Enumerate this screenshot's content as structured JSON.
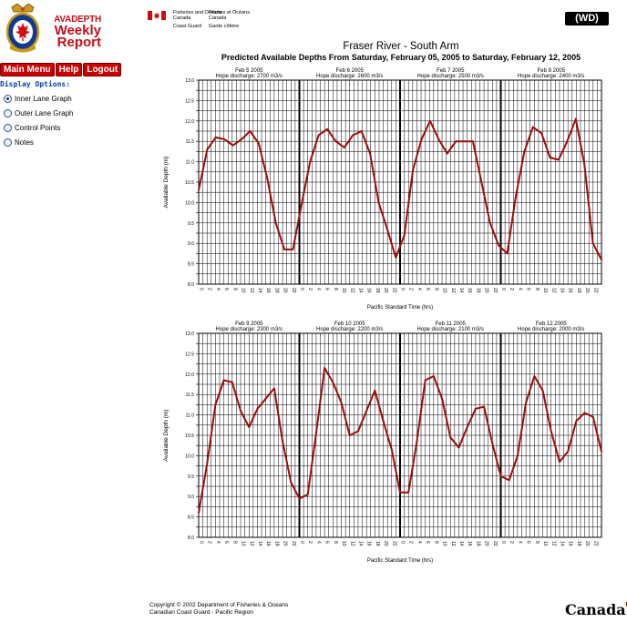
{
  "app": {
    "logo": {
      "line1": "AVADEPTH",
      "line2": "Weekly",
      "line3": "Report"
    },
    "nav": {
      "main_menu": "Main Menu",
      "help": "Help",
      "logout": "Logout"
    },
    "display_options": {
      "title": "Display Options:",
      "items": [
        {
          "label": "Inner Lane Graph",
          "selected": true
        },
        {
          "label": "Outer Lane Graph",
          "selected": false
        },
        {
          "label": "Control Points",
          "selected": false
        },
        {
          "label": "Notes",
          "selected": false
        }
      ]
    }
  },
  "header": {
    "gov_en": "Fisheries and Oceans",
    "gov_en2": "Canada",
    "gov_en3": "Coast Guard",
    "gov_fr": "Pêches et Océans",
    "gov_fr2": "Canada",
    "gov_fr3": "Garde côtière",
    "badge": "(WD)",
    "title": "Fraser River - South Arm",
    "subtitle": "Predicted Available Depths From Saturday, February 05, 2005 to Saturday, February 12, 2005"
  },
  "footer": {
    "copyright_line1": "Copyright © 2002 Department of Fisheries & Oceans",
    "copyright_line2": "Canadian Coast Guard - Pacific Region",
    "wordmark": "Canada"
  },
  "colors": {
    "accent": "#cc0000",
    "line": "#9b0d0d",
    "brand_red": "#c0101a"
  },
  "chart_data": [
    {
      "type": "line",
      "xlabel": "Pacific Standard Time (hrs)",
      "ylabel": "Available Depth (m)",
      "ylim": [
        8.0,
        13.0
      ],
      "y_ticks": [
        "8.0",
        "8.5",
        "9.0",
        "9.5",
        "10.0",
        "10.5",
        "11.0",
        "11.5",
        "12.0",
        "12.5",
        "13.0"
      ],
      "x_tick_labels": [
        "0",
        "2",
        "4",
        "6",
        "8",
        "10",
        "12",
        "14",
        "16",
        "18",
        "20",
        "22"
      ],
      "grid": true,
      "days": [
        {
          "date": "Feb 5 2005",
          "discharge": "Hope discharge: 2700 m3/s"
        },
        {
          "date": "Feb 6 2005",
          "discharge": "Hope discharge: 2600 m3/s"
        },
        {
          "date": "Feb 7 2005",
          "discharge": "Hope discharge: 2500 m3/s"
        },
        {
          "date": "Feb 8 2005",
          "discharge": "Hope discharge: 2400 m3/s"
        }
      ],
      "series": [
        {
          "values": [
            10.3,
            11.3,
            11.6,
            11.55,
            11.4,
            11.55,
            11.75,
            11.45,
            10.6,
            9.5,
            8.85,
            8.85,
            9.95,
            11.0,
            11.65,
            11.8,
            11.5,
            11.35,
            11.65,
            11.75,
            11.2,
            10.0,
            9.35,
            8.65,
            9.2,
            10.8,
            11.55,
            12.0,
            11.55,
            11.2,
            11.5,
            11.5,
            11.5,
            10.5,
            9.5,
            8.95,
            8.75,
            10.15,
            11.25,
            11.85,
            11.7,
            11.1,
            11.05,
            11.5,
            12.05,
            10.95,
            9.0,
            8.6
          ]
        }
      ]
    },
    {
      "type": "line",
      "xlabel": "Pacific Standard Time (hrs)",
      "ylabel": "Available Depth (m)",
      "ylim": [
        8.0,
        13.0
      ],
      "y_ticks": [
        "8.0",
        "8.5",
        "9.0",
        "9.5",
        "10.0",
        "10.5",
        "11.0",
        "11.5",
        "12.0",
        "12.5",
        "13.0"
      ],
      "x_tick_labels": [
        "0",
        "2",
        "4",
        "6",
        "8",
        "10",
        "12",
        "14",
        "16",
        "18",
        "20",
        "22"
      ],
      "grid": true,
      "days": [
        {
          "date": "Feb 9 2005",
          "discharge": "Hope discharge: 2300 m3/s"
        },
        {
          "date": "Feb 10 2005",
          "discharge": "Hope discharge: 2200 m3/s"
        },
        {
          "date": "Feb 11 2005",
          "discharge": "Hope discharge: 2100 m3/s"
        },
        {
          "date": "Feb 12 2005",
          "discharge": "Hope discharge: 2000 m3/s"
        }
      ],
      "series": [
        {
          "values": [
            8.6,
            9.8,
            11.25,
            11.85,
            11.8,
            11.1,
            10.7,
            11.15,
            11.4,
            11.65,
            10.35,
            9.35,
            8.95,
            9.05,
            10.55,
            12.15,
            11.8,
            11.3,
            10.5,
            10.6,
            11.1,
            11.6,
            10.85,
            10.15,
            9.1,
            9.1,
            10.35,
            11.85,
            11.95,
            11.4,
            10.45,
            10.2,
            10.7,
            11.15,
            11.2,
            10.3,
            9.5,
            9.4,
            10.0,
            11.3,
            11.95,
            11.6,
            10.6,
            9.85,
            10.1,
            10.85,
            11.05,
            10.95,
            10.1
          ]
        }
      ]
    }
  ]
}
